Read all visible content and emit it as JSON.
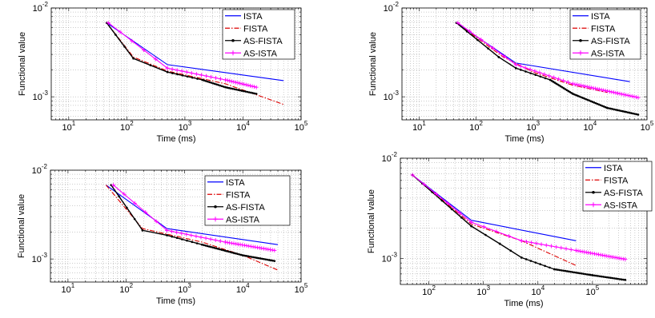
{
  "chart_data": [
    {
      "type": "line",
      "xlabel": "Time (ms)",
      "ylabel": "Functional value",
      "xscale": "log",
      "yscale": "log",
      "xlim": [
        5,
        100000
      ],
      "ylim": [
        0.00055,
        0.01
      ],
      "xticks": [
        10,
        100,
        1000,
        10000,
        100000
      ],
      "xticklabels": [
        "10^1",
        "10^2",
        "10^3",
        "10^4",
        "10^5"
      ],
      "yticks": [
        0.001,
        0.01
      ],
      "yticklabels": [
        "10^-3",
        "10^-2"
      ],
      "grid": true,
      "legend_position": "top-right",
      "series": [
        {
          "name": "ISTA",
          "color": "#0000ff",
          "style": "solid",
          "marker": "none",
          "points": [
            [
              45,
              0.0068
            ],
            [
              500,
              0.0023
            ],
            [
              50000,
              0.00152
            ]
          ]
        },
        {
          "name": "FISTA",
          "color": "#dd0000",
          "style": "dashdot",
          "marker": "none",
          "points": [
            [
              45,
              0.0068
            ],
            [
              130,
              0.0028
            ],
            [
              500,
              0.00195
            ],
            [
              5000,
              0.0014
            ],
            [
              50000,
              0.00082
            ]
          ]
        },
        {
          "name": "AS-FISTA",
          "color": "#000000",
          "style": "solid",
          "marker": "dot",
          "points": [
            [
              45,
              0.0068
            ],
            [
              130,
              0.0027
            ],
            [
              500,
              0.0019
            ],
            [
              2000,
              0.00155
            ],
            [
              5000,
              0.00128
            ],
            [
              17000,
              0.00108
            ]
          ]
        },
        {
          "name": "AS-ISTA",
          "color": "#ff00ff",
          "style": "solid",
          "marker": "plus",
          "points": [
            [
              48,
              0.0068
            ],
            [
              500,
              0.0021
            ],
            [
              5000,
              0.00155
            ],
            [
              17000,
              0.00128
            ]
          ]
        }
      ]
    },
    {
      "type": "line",
      "xlabel": "Time (ms)",
      "ylabel": "Functional value",
      "xscale": "log",
      "yscale": "log",
      "xlim": [
        5,
        100000
      ],
      "ylim": [
        0.00055,
        0.01
      ],
      "xticks": [
        10,
        100,
        1000,
        10000,
        100000
      ],
      "xticklabels": [
        "10^1",
        "10^2",
        "10^3",
        "10^4",
        "10^5"
      ],
      "yticks": [
        0.001,
        0.01
      ],
      "yticklabels": [
        "10^-3",
        "10^-2"
      ],
      "grid": true,
      "legend_position": "top-right",
      "series": [
        {
          "name": "ISTA",
          "color": "#0000ff",
          "style": "solid",
          "marker": "none",
          "points": [
            [
              45,
              0.0068
            ],
            [
              500,
              0.0024
            ],
            [
              50000,
              0.00148
            ]
          ]
        },
        {
          "name": "FISTA",
          "color": "#dd0000",
          "style": "dashdot",
          "marker": "none",
          "points": [
            [
              45,
              0.0068
            ],
            [
              300,
              0.0028
            ],
            [
              1000,
              0.0019
            ],
            [
              5000,
              0.00135
            ],
            [
              20000,
              0.00112
            ]
          ]
        },
        {
          "name": "AS-FISTA",
          "color": "#000000",
          "style": "solid",
          "marker": "dot",
          "points": [
            [
              45,
              0.0068
            ],
            [
              250,
              0.0028
            ],
            [
              500,
              0.0021
            ],
            [
              2000,
              0.00155
            ],
            [
              5000,
              0.00108
            ],
            [
              20000,
              0.00075
            ],
            [
              70000,
              0.00063
            ]
          ]
        },
        {
          "name": "AS-ISTA",
          "color": "#ff00ff",
          "style": "solid",
          "marker": "plus",
          "points": [
            [
              48,
              0.0068
            ],
            [
              500,
              0.0023
            ],
            [
              5000,
              0.0014
            ],
            [
              70000,
              0.00098
            ]
          ]
        }
      ]
    },
    {
      "type": "line",
      "xlabel": "Time (ms)",
      "ylabel": "Functional value",
      "xscale": "log",
      "yscale": "log",
      "xlim": [
        5,
        100000
      ],
      "ylim": [
        0.00055,
        0.01
      ],
      "xticks": [
        10,
        100,
        1000,
        10000,
        100000
      ],
      "xticklabels": [
        "10^1",
        "10^2",
        "10^3",
        "10^4",
        "10^5"
      ],
      "yticks": [
        0.001,
        0.01
      ],
      "yticklabels": [
        "10^-3",
        "10^-2"
      ],
      "grid": true,
      "legend_position": "top-right",
      "series": [
        {
          "name": "ISTA",
          "color": "#0000ff",
          "style": "solid",
          "marker": "none",
          "points": [
            [
              45,
              0.0068
            ],
            [
              500,
              0.0022
            ],
            [
              40000,
              0.00145
            ]
          ]
        },
        {
          "name": "FISTA",
          "color": "#dd0000",
          "style": "dashdot",
          "marker": "none",
          "points": [
            [
              45,
              0.0068
            ],
            [
              190,
              0.0022
            ],
            [
              2000,
              0.00155
            ],
            [
              10000,
              0.0011
            ],
            [
              40000,
              0.00075
            ]
          ]
        },
        {
          "name": "AS-FISTA",
          "color": "#000000",
          "style": "solid",
          "marker": "dot",
          "points": [
            [
              55,
              0.0068
            ],
            [
              190,
              0.0021
            ],
            [
              500,
              0.00185
            ],
            [
              2000,
              0.00145
            ],
            [
              10000,
              0.0011
            ],
            [
              35000,
              0.00095
            ]
          ]
        },
        {
          "name": "AS-ISTA",
          "color": "#ff00ff",
          "style": "solid",
          "marker": "plus",
          "points": [
            [
              60,
              0.0068
            ],
            [
              500,
              0.0021
            ],
            [
              5000,
              0.00155
            ],
            [
              35000,
              0.00125
            ]
          ]
        }
      ]
    },
    {
      "type": "line",
      "xlabel": "Time (ms)",
      "ylabel": "Functional value",
      "xscale": "log",
      "yscale": "log",
      "xlim": [
        30,
        1000000
      ],
      "ylim": [
        0.00055,
        0.01
      ],
      "xticks": [
        100,
        1000,
        10000,
        100000
      ],
      "xticklabels": [
        "10^2",
        "10^3",
        "10^4",
        "10^5"
      ],
      "yticks": [
        0.001,
        0.01
      ],
      "yticklabels": [
        "10^-3",
        "10^-2"
      ],
      "grid": true,
      "legend_position": "top-right",
      "series": [
        {
          "name": "ISTA",
          "color": "#0000ff",
          "style": "solid",
          "marker": "none",
          "points": [
            [
              50,
              0.0068
            ],
            [
              600,
              0.0024
            ],
            [
              50000,
              0.0015
            ]
          ]
        },
        {
          "name": "FISTA",
          "color": "#dd0000",
          "style": "dashdot",
          "marker": "none",
          "points": [
            [
              50,
              0.0068
            ],
            [
              600,
              0.0022
            ],
            [
              5000,
              0.0015
            ],
            [
              50000,
              0.00085
            ]
          ]
        },
        {
          "name": "AS-FISTA",
          "color": "#000000",
          "style": "solid",
          "marker": "dot",
          "points": [
            [
              50,
              0.0068
            ],
            [
              600,
              0.0021
            ],
            [
              2000,
              0.0014
            ],
            [
              5000,
              0.00102
            ],
            [
              20000,
              0.00078
            ],
            [
              100000,
              0.00068
            ],
            [
              400000,
              0.00061
            ]
          ]
        },
        {
          "name": "AS-ISTA",
          "color": "#ff00ff",
          "style": "solid",
          "marker": "plus",
          "points": [
            [
              50,
              0.0068
            ],
            [
              600,
              0.0023
            ],
            [
              5000,
              0.0015
            ],
            [
              50000,
              0.0012
            ],
            [
              400000,
              0.00098
            ]
          ]
        }
      ]
    }
  ]
}
